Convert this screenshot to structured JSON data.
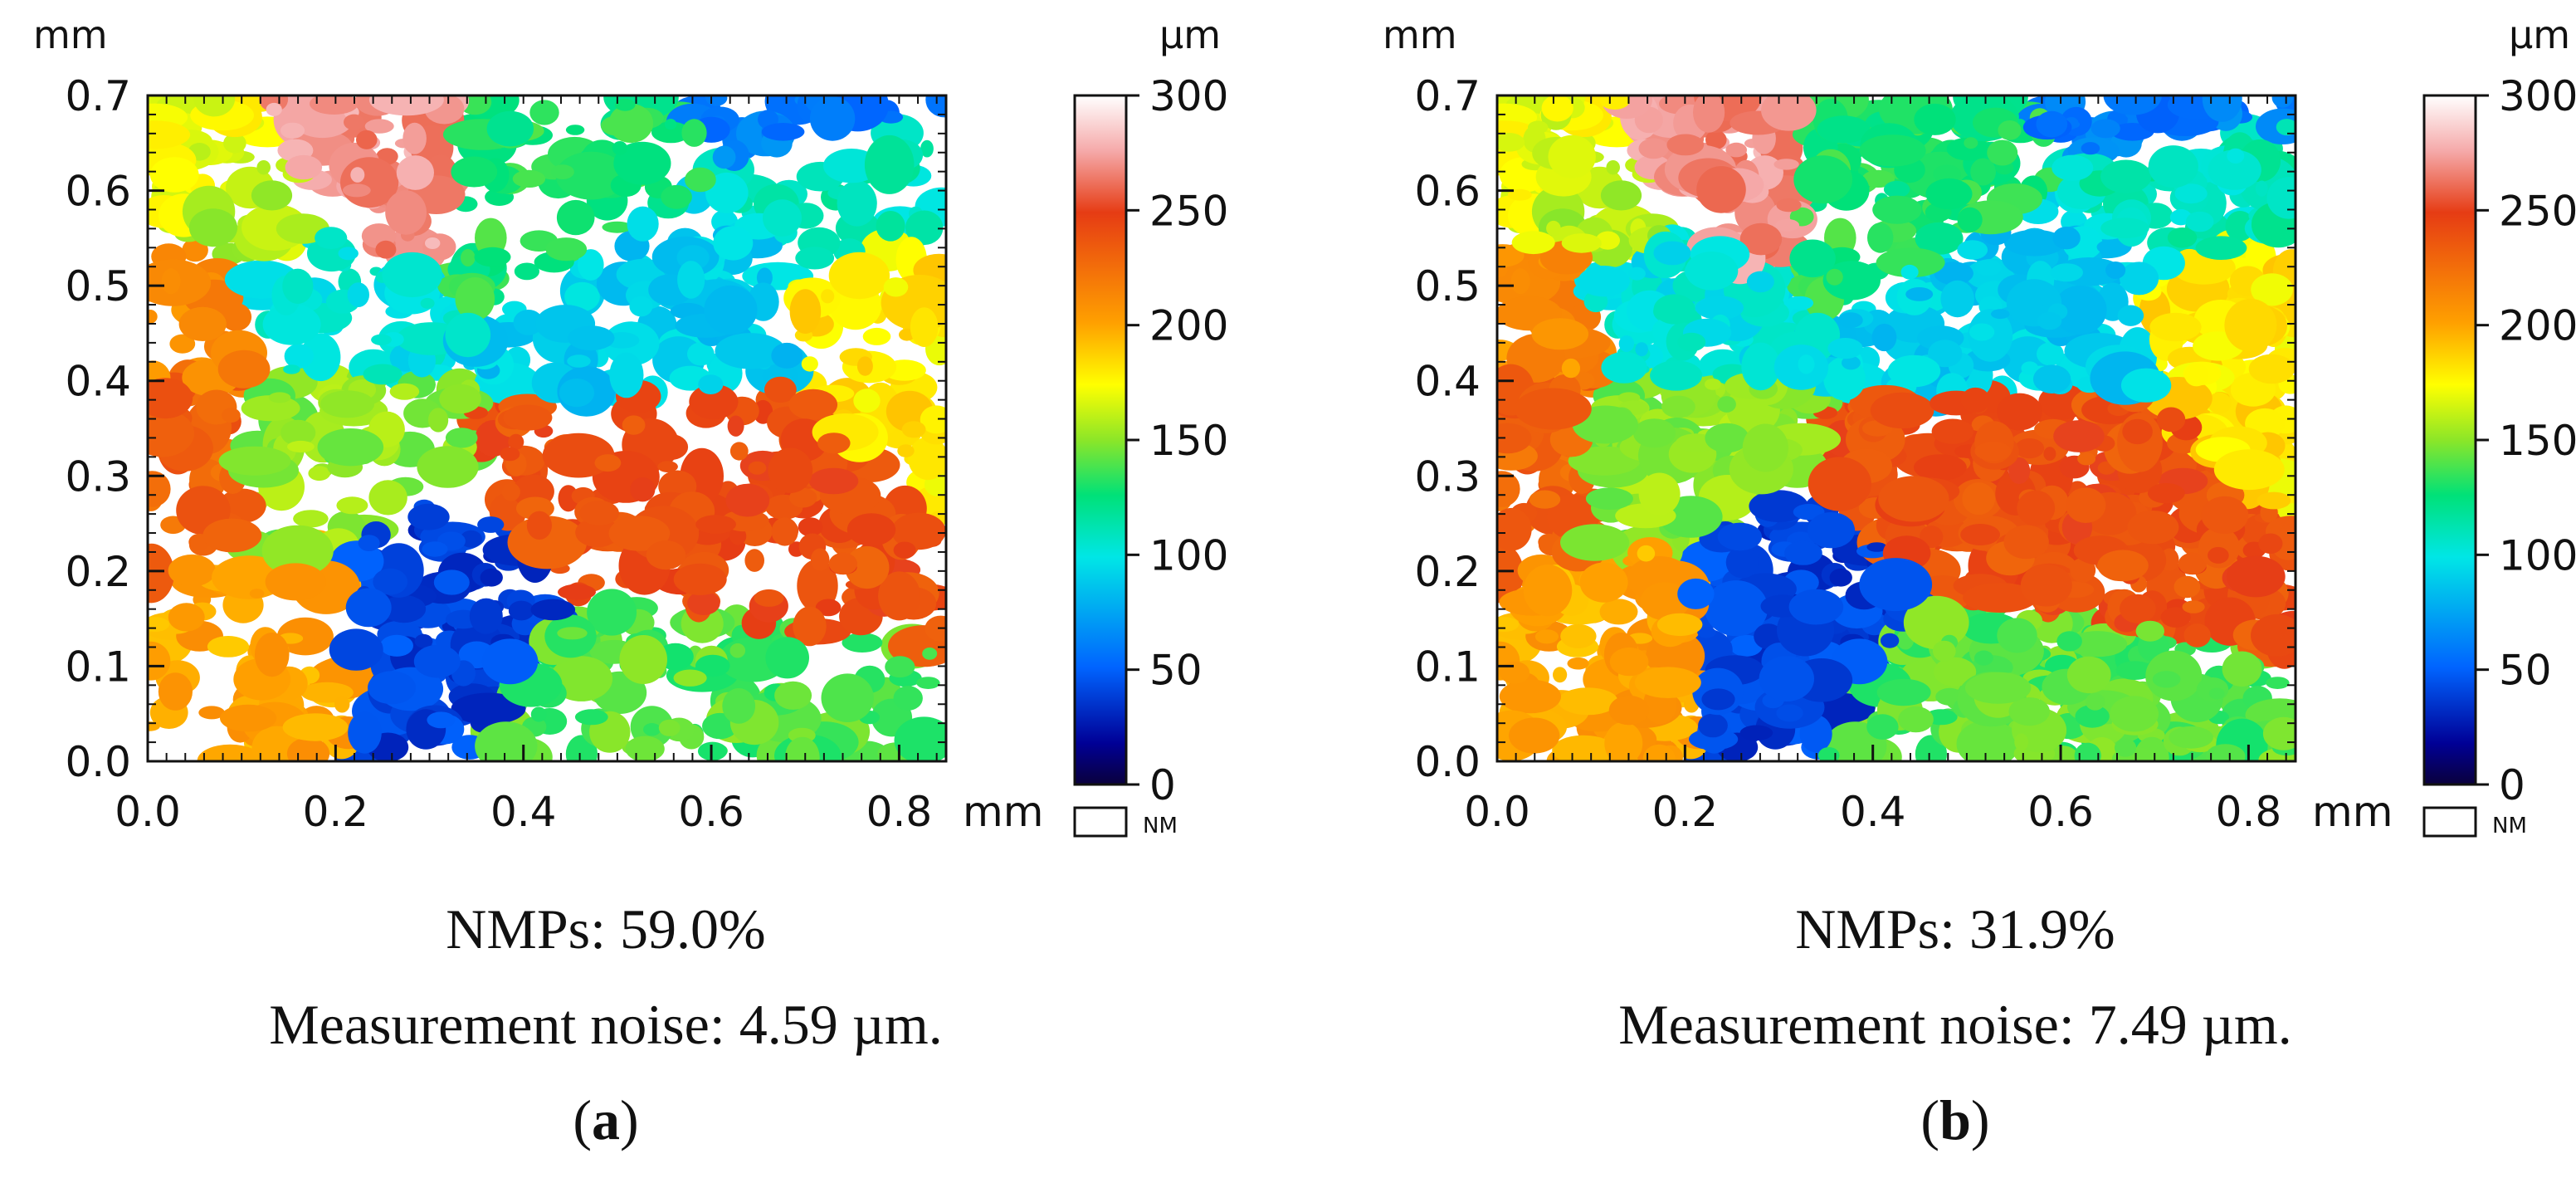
{
  "chart_data": [
    {
      "type": "heatmap",
      "panel_label": "a",
      "x_unit": "mm",
      "y_unit": "mm",
      "xlim": [
        0.0,
        0.85
      ],
      "ylim": [
        0.0,
        0.7
      ],
      "x_ticks": [
        "0.0",
        "0.2",
        "0.4",
        "0.6",
        "0.8"
      ],
      "y_ticks": [
        "0.0",
        "0.1",
        "0.2",
        "0.3",
        "0.4",
        "0.5",
        "0.6",
        "0.7"
      ],
      "colorbar": {
        "unit": "µm",
        "range": [
          0,
          300
        ],
        "ticks": [
          "0",
          "50",
          "100",
          "150",
          "200",
          "250",
          "300"
        ],
        "nm_label": "NM"
      },
      "nmp_label": "NMPs: 59.0%",
      "noise_label": "Measurement noise: 4.59 µm.",
      "nmp_percent": 59.0,
      "noise_um": 4.59,
      "height_patches_um": [
        210,
        150,
        240,
        90,
        40,
        160,
        130,
        270,
        200,
        170,
        110,
        60,
        230,
        180,
        140,
        100
      ]
    },
    {
      "type": "heatmap",
      "panel_label": "b",
      "x_unit": "mm",
      "y_unit": "mm",
      "xlim": [
        0.0,
        0.85
      ],
      "ylim": [
        0.0,
        0.7
      ],
      "x_ticks": [
        "0.0",
        "0.2",
        "0.4",
        "0.6",
        "0.8"
      ],
      "y_ticks": [
        "0.0",
        "0.1",
        "0.2",
        "0.3",
        "0.4",
        "0.5",
        "0.6",
        "0.7"
      ],
      "colorbar": {
        "unit": "µm",
        "range": [
          0,
          300
        ],
        "ticks": [
          "0",
          "50",
          "100",
          "150",
          "200",
          "250",
          "300"
        ],
        "nm_label": "NM"
      },
      "nmp_label": "NMPs: 31.9%",
      "noise_label": "Measurement noise: 7.49 µm.",
      "nmp_percent": 31.9,
      "noise_um": 7.49,
      "height_patches_um": [
        210,
        150,
        240,
        90,
        40,
        160,
        130,
        270,
        200,
        170,
        110,
        60,
        230,
        180,
        140,
        100
      ]
    }
  ]
}
